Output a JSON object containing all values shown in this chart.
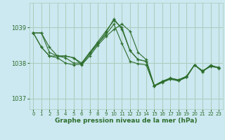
{
  "bg_color": "#cce8f0",
  "grid_color": "#aaccbb",
  "line_color": "#2d6e2d",
  "marker_color": "#2d6e2d",
  "xlabel": "Graphe pression niveau de la mer (hPa)",
  "xlabel_color": "#2d6e2d",
  "tick_color": "#2d6e2d",
  "ylim": [
    1036.7,
    1039.7
  ],
  "xlim": [
    -0.5,
    23.5
  ],
  "yticks": [
    1037,
    1038,
    1039
  ],
  "xticks": [
    0,
    1,
    2,
    3,
    4,
    5,
    6,
    7,
    8,
    9,
    10,
    11,
    12,
    13,
    14,
    15,
    16,
    17,
    18,
    19,
    20,
    21,
    22,
    23
  ],
  "series": [
    [
      1038.85,
      1038.85,
      1038.45,
      1038.2,
      1038.2,
      1038.15,
      1037.95,
      1038.2,
      1038.5,
      1038.75,
      1038.95,
      1039.1,
      1038.9,
      1038.3,
      1038.1,
      1037.37,
      1037.49,
      1037.58,
      1037.53,
      1037.63,
      1037.95,
      1037.78,
      1037.93,
      1037.88
    ],
    [
      1038.85,
      1038.85,
      1038.3,
      1038.2,
      1038.2,
      1038.15,
      1038.0,
      1038.3,
      1038.55,
      1038.8,
      1039.1,
      1038.55,
      1038.05,
      1037.98,
      1037.95,
      1037.35,
      1037.47,
      1037.55,
      1037.5,
      1037.6,
      1037.95,
      1037.78,
      1037.9,
      1037.87
    ],
    [
      1038.85,
      1038.45,
      1038.2,
      1038.2,
      1038.15,
      1038.0,
      1038.0,
      1038.3,
      1038.6,
      1038.9,
      1039.2,
      1039.0,
      1038.35,
      1038.1,
      1038.05,
      1037.36,
      1037.48,
      1037.57,
      1037.52,
      1037.62,
      1037.95,
      1037.77,
      1037.92,
      1037.87
    ],
    [
      1038.85,
      1038.45,
      1038.2,
      1038.15,
      1038.0,
      1037.95,
      1037.97,
      1038.25,
      1038.55,
      1038.85,
      1039.25,
      1038.95,
      1038.35,
      1038.1,
      1038.05,
      1037.35,
      1037.45,
      1037.55,
      1037.5,
      1037.6,
      1037.95,
      1037.75,
      1037.95,
      1037.85
    ]
  ]
}
